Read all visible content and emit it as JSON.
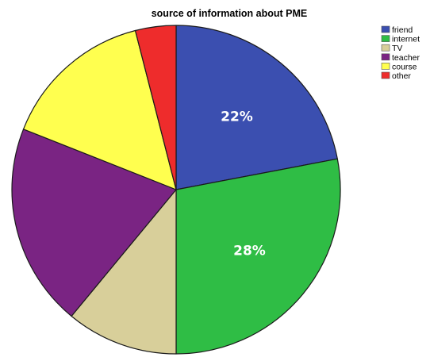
{
  "chart_data": {
    "type": "pie",
    "title": "source of information about PME",
    "categories": [
      "friend",
      "internet",
      "TV",
      "teacher",
      "course",
      "other"
    ],
    "values": [
      22,
      28,
      11,
      20,
      15,
      4
    ],
    "colors": [
      "#3b4fb0",
      "#2fbd45",
      "#d8cf9a",
      "#7a2483",
      "#ffff4f",
      "#ee2c2c"
    ],
    "data_labels": [
      "22%",
      "28%",
      "",
      "",
      "",
      ""
    ],
    "start_angle_deg": 0,
    "direction": "clockwise",
    "legend_position": "top-right",
    "slice_border_color": "#1a1a1a"
  }
}
